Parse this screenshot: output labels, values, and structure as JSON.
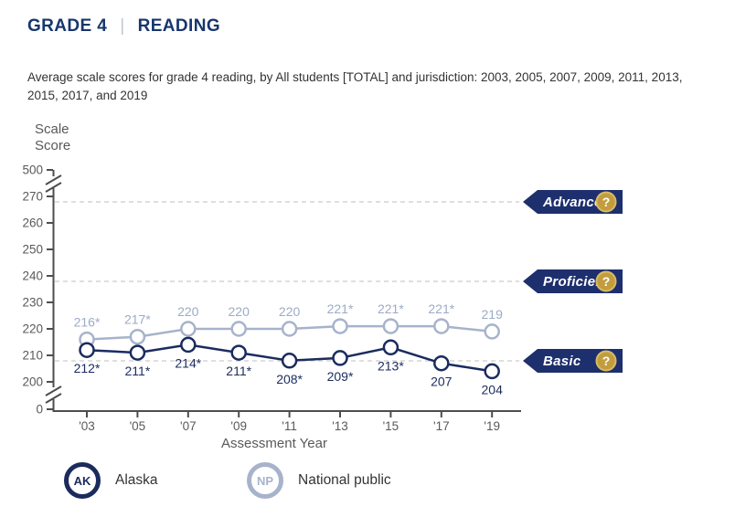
{
  "header": {
    "grade": "GRADE 4",
    "divider": "|",
    "subject": "READING"
  },
  "subtitle": "Average scale scores for grade 4 reading, by All students [TOTAL] and jurisdiction: 2003, 2005, 2007, 2009, 2011, 2013, 2015, 2017, and 2019",
  "chart_data": {
    "type": "line",
    "ylabel": "Scale Score",
    "xlabel": "Assessment Year",
    "x": [
      2003,
      2005,
      2007,
      2009,
      2011,
      2013,
      2015,
      2017,
      2019
    ],
    "x_tick_labels": [
      "'03",
      "'05",
      "'07",
      "'09",
      "'11",
      "'13",
      "'15",
      "'17",
      "'19"
    ],
    "y_tick_labels": [
      "500",
      "270",
      "260",
      "250",
      "240",
      "230",
      "220",
      "210",
      "200",
      "0"
    ],
    "y_axis_breaks": true,
    "visible_value_range": [
      200,
      270
    ],
    "grid": "dashed horizontal lines at achievement-level cutpoints",
    "legend_position": "bottom",
    "help_icon": "?",
    "series": [
      {
        "name": "National public",
        "abbr": "NP",
        "color": "#a7b3cb",
        "label_color": "#9dabc6",
        "label_position": "above",
        "values": [
          216,
          217,
          220,
          220,
          220,
          221,
          221,
          221,
          219
        ],
        "point_labels": [
          "216*",
          "217*",
          "220",
          "220",
          "220",
          "221*",
          "221*",
          "221*",
          "219"
        ]
      },
      {
        "name": "Alaska",
        "abbr": "AK",
        "color": "#1b2b5e",
        "label_color": "#1b2b5e",
        "label_position": "below",
        "values": [
          212,
          211,
          214,
          211,
          208,
          209,
          213,
          207,
          204
        ],
        "point_labels": [
          "212*",
          "211*",
          "214*",
          "211*",
          "208*",
          "209*",
          "213*",
          "207",
          "204"
        ]
      }
    ],
    "achievement_levels": [
      {
        "label": "Advanced",
        "cutpoint": 268
      },
      {
        "label": "Proficient",
        "cutpoint": 238
      },
      {
        "label": "Basic",
        "cutpoint": 208
      }
    ]
  },
  "legend": {
    "items": [
      {
        "abbr": "AK",
        "label": "Alaska"
      },
      {
        "abbr": "NP",
        "label": "National public"
      }
    ]
  },
  "colors": {
    "title_navy": "#17366d",
    "navy": "#1b2b5e",
    "badge_navy": "#1e2f6d",
    "light_blue": "#a7b3cb",
    "gold": "#c29d3d",
    "gold_ring": "#d8ba67",
    "axis": "#4d4d4d",
    "tick_text": "#595959",
    "gridline": "#cccccc"
  }
}
